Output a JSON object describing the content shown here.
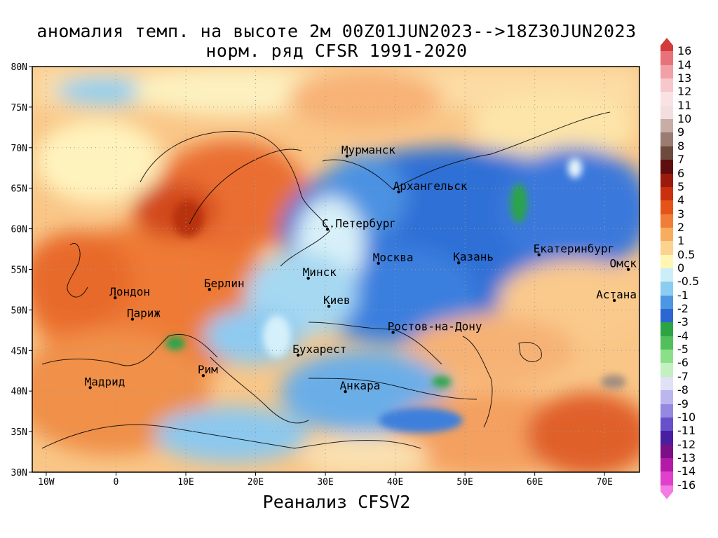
{
  "title": {
    "line1": "аномалия темп. на высоте 2м 00Z01JUN2023-->18Z30JUN2023",
    "line2": "норм. ряд CFSR 1991-2020"
  },
  "footer": "Реанализ CFSV2",
  "map": {
    "lat_labels": [
      "80N",
      "75N",
      "70N",
      "65N",
      "60N",
      "55N",
      "50N",
      "45N",
      "40N",
      "35N",
      "30N"
    ],
    "lon_labels": [
      "10W",
      "0",
      "10E",
      "20E",
      "30E",
      "40E",
      "50E",
      "60E",
      "70E"
    ],
    "cities": [
      {
        "id": "murmansk",
        "name": "Мурманск",
        "lon": 33.1,
        "lat": 68.97
      },
      {
        "id": "arkhangelsk",
        "name": "Архангельск",
        "lon": 40.5,
        "lat": 64.55
      },
      {
        "id": "st-petersburg",
        "name": "С.Петербург",
        "lon": 30.3,
        "lat": 59.94
      },
      {
        "id": "moscow",
        "name": "Москва",
        "lon": 37.6,
        "lat": 55.75
      },
      {
        "id": "kazan",
        "name": "Казань",
        "lon": 49.1,
        "lat": 55.8
      },
      {
        "id": "yekaterinburg",
        "name": "Екатеринбург",
        "lon": 60.6,
        "lat": 56.8
      },
      {
        "id": "minsk",
        "name": "Минск",
        "lon": 27.55,
        "lat": 53.9
      },
      {
        "id": "omsk",
        "name": "Омск",
        "lon": 73.4,
        "lat": 54.98
      },
      {
        "id": "astana",
        "name": "Астана",
        "lon": 71.4,
        "lat": 51.16
      },
      {
        "id": "london",
        "name": "Лондон",
        "lon": -0.12,
        "lat": 51.5
      },
      {
        "id": "berlin",
        "name": "Берлин",
        "lon": 13.4,
        "lat": 52.52
      },
      {
        "id": "kyiv",
        "name": "Киев",
        "lon": 30.5,
        "lat": 50.45
      },
      {
        "id": "paris",
        "name": "Париж",
        "lon": 2.35,
        "lat": 48.86
      },
      {
        "id": "rostov",
        "name": "Ростов-на-Дону",
        "lon": 39.7,
        "lat": 47.23
      },
      {
        "id": "bucharest",
        "name": "Бухарест",
        "lon": 26.1,
        "lat": 44.43
      },
      {
        "id": "rome",
        "name": "Рим",
        "lon": 12.5,
        "lat": 41.9
      },
      {
        "id": "madrid",
        "name": "Мадрид",
        "lon": -3.7,
        "lat": 40.42
      },
      {
        "id": "ankara",
        "name": "Анкара",
        "lon": 32.86,
        "lat": 39.93
      }
    ]
  },
  "legend": {
    "labels": [
      "16",
      "14",
      "13",
      "12",
      "11",
      "10",
      "9",
      "8",
      "7",
      "6",
      "5",
      "4",
      "3",
      "2",
      "1",
      "0.5",
      "0",
      "-0.5",
      "-1",
      "-2",
      "-3",
      "-4",
      "-5",
      "-6",
      "-7",
      "-8",
      "-9",
      "-10",
      "-11",
      "-12",
      "-13",
      "-14",
      "-16"
    ],
    "colors": [
      "#d33a3a",
      "#e8727a",
      "#f0a0a6",
      "#f6c8cc",
      "#fae2e4",
      "#f2dede",
      "#c8aca6",
      "#9a7c72",
      "#6e4a3c",
      "#5e0e0e",
      "#9c1a0c",
      "#c8300e",
      "#e45418",
      "#f07e38",
      "#f8ac5e",
      "#fcd290",
      "#fff6b4",
      "#cceef8",
      "#8cccf0",
      "#4c96e4",
      "#2c66d0",
      "#2ca444",
      "#52c05a",
      "#8ae088",
      "#c4f0c0",
      "#e0e0f6",
      "#bcb6ee",
      "#9488e0",
      "#6850ca",
      "#4a1ea0",
      "#7c0e86",
      "#b41aa8",
      "#e040cc",
      "#f47ae4"
    ]
  }
}
